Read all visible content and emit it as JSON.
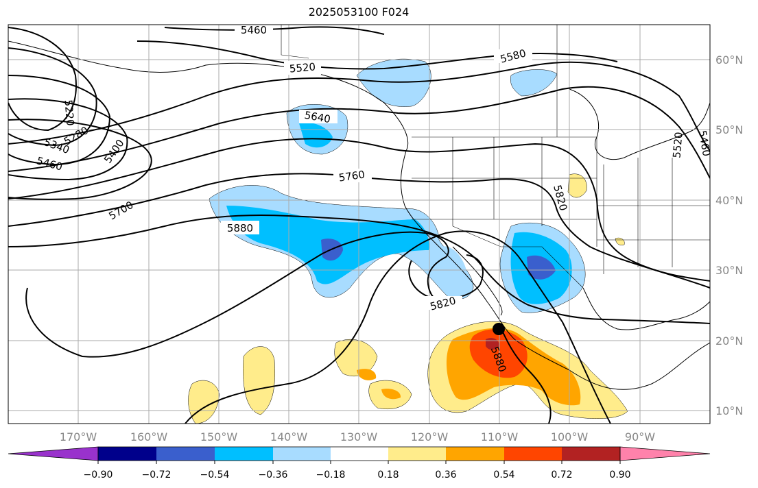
{
  "title": "2025053100 F024",
  "map": {
    "lon_ticks": [
      "170°W",
      "160°W",
      "150°W",
      "140°W",
      "130°W",
      "120°W",
      "110°W",
      "100°W",
      "90°W"
    ],
    "lat_ticks": [
      "60°N",
      "50°N",
      "40°N",
      "30°N",
      "20°N",
      "10°N"
    ],
    "lon_range": [
      -180,
      -80
    ],
    "lat_range": [
      8,
      66
    ],
    "contour_labels": [
      "5460",
      "5520",
      "5580",
      "5220",
      "5280",
      "5340",
      "5400",
      "5460",
      "5640",
      "5520",
      "5460",
      "5760",
      "5700",
      "5820",
      "5880",
      "5820",
      "5880"
    ],
    "storm_marker": {
      "lon": -110,
      "lat": 21.5
    }
  },
  "colorbar": {
    "tick_labels": [
      "−0.90",
      "−0.72",
      "−0.54",
      "−0.36",
      "−0.18",
      "0.18",
      "0.36",
      "0.54",
      "0.72",
      "0.90"
    ],
    "colors": [
      "#9932cc",
      "#00008b",
      "#3a5fcd",
      "#00bfff",
      "#a8dcff",
      "#ffffff",
      "#ffec8b",
      "#ffa500",
      "#ff4500",
      "#b22222",
      "#ff82ab"
    ]
  }
}
